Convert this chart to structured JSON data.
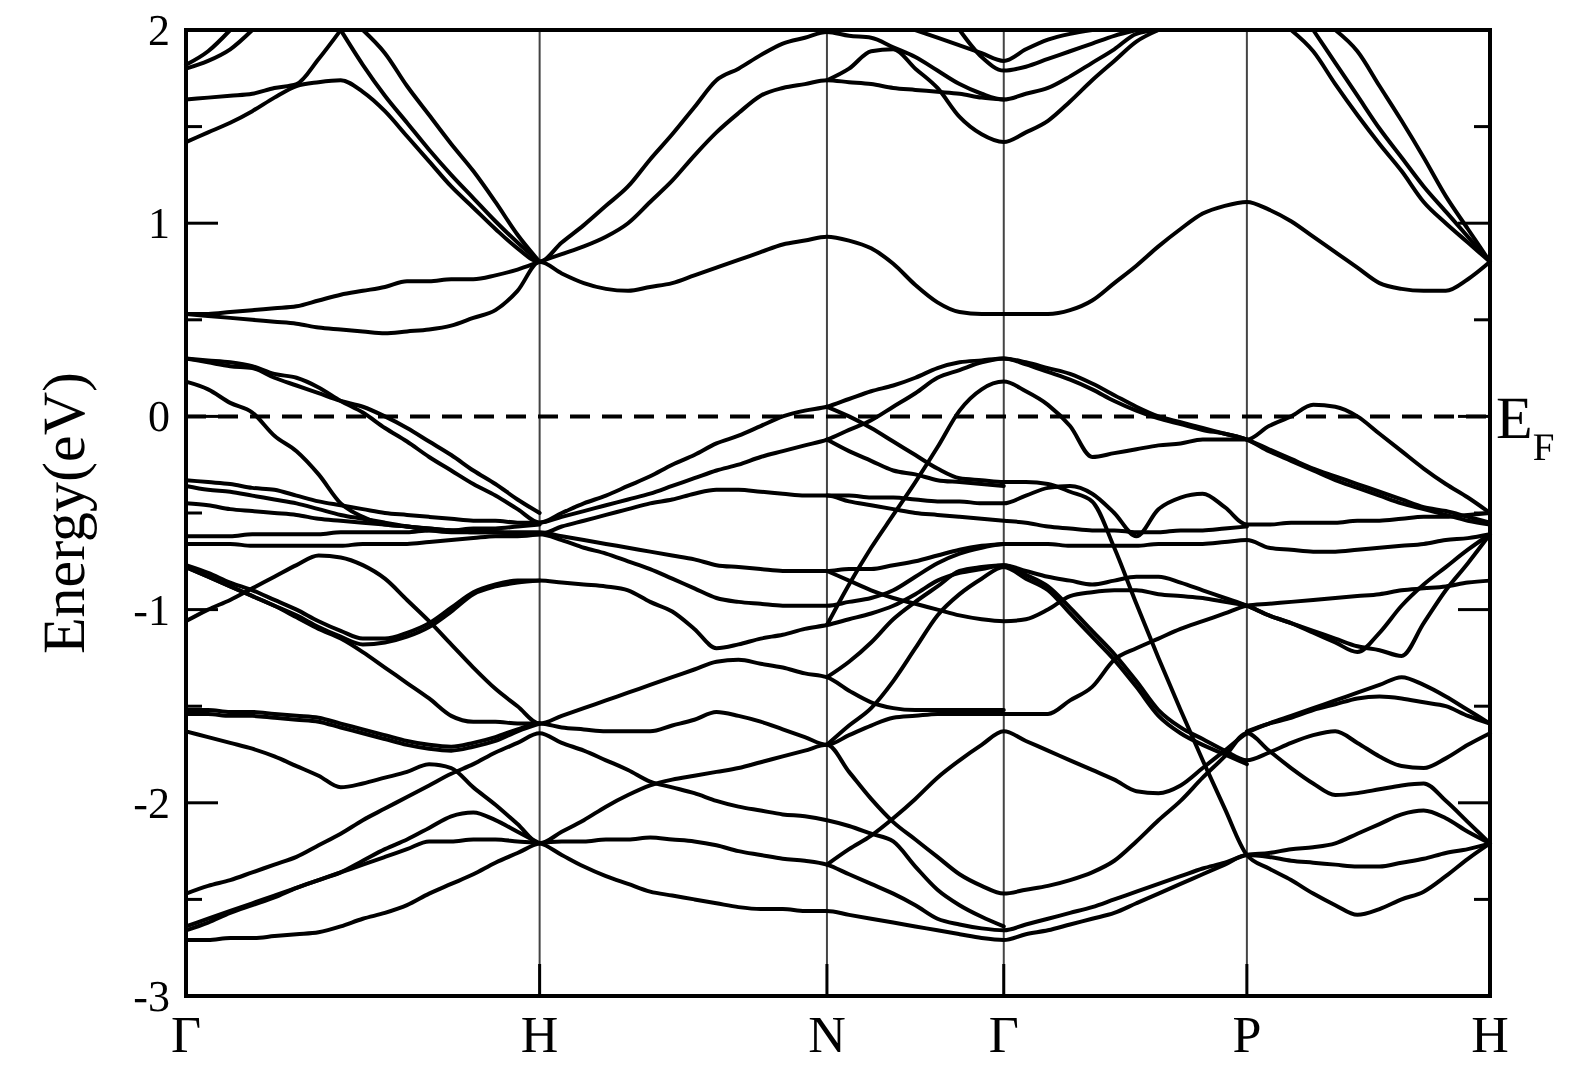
{
  "chart_data": {
    "type": "line",
    "ylabel": "Energy(eV)",
    "color": "#000000",
    "grid": "x",
    "categories": [
      "Γ",
      null,
      null,
      null,
      null,
      null,
      null,
      null,
      null,
      null,
      null,
      null,
      null,
      null,
      null,
      null,
      "H",
      null,
      null,
      null,
      null,
      null,
      null,
      null,
      null,
      null,
      null,
      null,
      null,
      "N",
      null,
      null,
      null,
      null,
      null,
      null,
      null,
      "Γ",
      null,
      null,
      null,
      null,
      null,
      null,
      null,
      null,
      null,
      null,
      "P",
      null,
      null,
      null,
      null,
      null,
      null,
      null,
      null,
      null,
      null,
      "H"
    ],
    "ylim": [
      -3,
      2
    ],
    "yticks": [
      -3,
      {
        "value": -2.5,
        "label": null
      },
      -2,
      {
        "value": -1.5,
        "label": null
      },
      -1,
      {
        "value": -0.5,
        "label": null
      },
      0,
      {
        "value": 0.5,
        "label": null
      },
      1,
      {
        "value": 1.5,
        "label": null
      },
      2
    ],
    "ref_lines": [
      {
        "axis": "y",
        "value": 0,
        "label": "E$_{F}$",
        "line_style": "dashed"
      }
    ],
    "series": [
      {
        "values": [
          1.82,
          1.89,
          2.0,
          null,
          null,
          null,
          null,
          null,
          null,
          null,
          null,
          null,
          null,
          null,
          null,
          null,
          null,
          null,
          null,
          null,
          null,
          null,
          null,
          null,
          null,
          null,
          null,
          null,
          null,
          null,
          null,
          null,
          null,
          2.0,
          1.96,
          1.92,
          1.88,
          1.84,
          1.9,
          1.95,
          1.98,
          2.0,
          null,
          null,
          null,
          null,
          null,
          null,
          null,
          null,
          null,
          null,
          null,
          null,
          null,
          null,
          null,
          null,
          null,
          null
        ]
      },
      {
        "values": [
          1.8,
          1.84,
          1.9,
          2.0,
          null,
          null,
          null,
          null,
          null,
          null,
          null,
          null,
          null,
          null,
          null,
          null,
          null,
          null,
          null,
          null,
          null,
          null,
          null,
          null,
          null,
          null,
          null,
          null,
          null,
          null,
          null,
          null,
          null,
          null,
          null,
          2.0,
          1.86,
          1.79,
          1.81,
          1.85,
          1.89,
          1.93,
          1.97,
          2.0,
          null,
          null,
          null,
          null,
          null,
          null,
          null,
          null,
          null,
          null,
          null,
          null,
          null,
          null,
          null,
          null
        ]
      },
      {
        "values": [
          1.64,
          1.65,
          1.66,
          1.67,
          1.7,
          1.72,
          1.85,
          2.0,
          null,
          null,
          null,
          null,
          null,
          null,
          null,
          null,
          null,
          null,
          null,
          null,
          null,
          null,
          null,
          null,
          null,
          null,
          null,
          null,
          null,
          1.74,
          1.8,
          1.89,
          1.9,
          1.8,
          1.7,
          1.55,
          1.46,
          1.42,
          1.47,
          1.53,
          1.63,
          1.74,
          1.84,
          1.94,
          2.0,
          null,
          null,
          null,
          null,
          null,
          null,
          null,
          null,
          null,
          null,
          null,
          null,
          null,
          null,
          null
        ]
      },
      {
        "values": [
          null,
          null,
          null,
          null,
          null,
          null,
          null,
          2.0,
          1.82,
          1.66,
          1.52,
          1.38,
          1.25,
          1.13,
          1.01,
          0.9,
          0.8,
          null,
          null,
          null,
          null,
          null,
          null,
          null,
          null,
          null,
          null,
          null,
          null,
          0.05,
          0,
          -0.06,
          -0.13,
          -0.2,
          -0.27,
          -0.32,
          -0.33,
          -0.34,
          -0.34,
          -0.35,
          -0.39,
          -0.44,
          -0.68,
          -0.97,
          -1.25,
          -1.52,
          -1.78,
          -2.03,
          -2.27,
          -2.34,
          -2.4,
          -2.47,
          -2.53,
          -2.58,
          -2.55,
          -2.5,
          -2.46,
          -2.38,
          -2.29,
          -2.21
        ]
      },
      {
        "values": [
          null,
          null,
          null,
          null,
          null,
          null,
          null,
          null,
          2.0,
          1.88,
          1.71,
          1.56,
          1.41,
          1.27,
          1.11,
          0.94,
          0.8,
          null,
          null,
          null,
          null,
          null,
          null,
          null,
          null,
          null,
          null,
          null,
          null,
          -1.08,
          -0.87,
          -0.68,
          -0.51,
          -0.34,
          -0.16,
          0.03,
          0.14,
          0.18,
          0.13,
          0.06,
          -0.05,
          -0.21,
          -0.19,
          -0.17,
          -0.15,
          -0.14,
          -0.12,
          -0.12,
          -0.12,
          -0.05,
          0,
          0.06,
          0.05,
          0,
          -0.09,
          -0.18,
          -0.27,
          -0.35,
          -0.42,
          -0.5
        ]
      },
      {
        "values": [
          1.42,
          1.47,
          1.52,
          1.58,
          1.65,
          1.71,
          1.73,
          1.74,
          1.68,
          1.58,
          1.45,
          1.32,
          1.19,
          1.08,
          0.97,
          0.87,
          0.8,
          0.9,
          0.99,
          1.09,
          1.19,
          1.33,
          1.46,
          1.6,
          1.74,
          1.8,
          1.87,
          1.93,
          1.96,
          1.99,
          1.97,
          1.96,
          1.91,
          1.86,
          1.79,
          1.72,
          1.67,
          1.64,
          1.67,
          1.7,
          1.76,
          1.83,
          1.9,
          1.98,
          2.0,
          null,
          null,
          null,
          null,
          null,
          null,
          null,
          null,
          null,
          null,
          null,
          null,
          null,
          null,
          null
        ]
      },
      {
        "values": [
          0.53,
          0.53,
          0.54,
          0.55,
          0.56,
          0.57,
          0.6,
          0.63,
          0.65,
          0.67,
          0.7,
          0.7,
          0.71,
          0.71,
          0.73,
          0.76,
          0.8,
          0.84,
          0.88,
          0.93,
          1.0,
          1.11,
          1.22,
          1.35,
          1.47,
          1.57,
          1.66,
          1.7,
          1.72,
          1.74,
          1.73,
          1.72,
          1.7,
          1.69,
          1.68,
          1.67,
          1.65,
          1.64,
          null,
          null,
          null,
          null,
          null,
          null,
          null,
          null,
          null,
          null,
          null,
          null,
          null,
          null,
          null,
          null,
          null,
          null,
          null,
          null,
          null,
          null
        ]
      },
      {
        "values": [
          0.53,
          0.52,
          0.51,
          0.5,
          0.49,
          0.48,
          0.46,
          0.45,
          0.44,
          0.43,
          0.44,
          0.45,
          0.47,
          0.51,
          0.55,
          0.65,
          0.8,
          0.74,
          0.69,
          0.66,
          0.65,
          0.67,
          0.69,
          0.73,
          0.77,
          0.81,
          0.85,
          0.89,
          0.91,
          0.93,
          0.91,
          0.87,
          0.79,
          0.68,
          0.59,
          0.54,
          0.53,
          0.53,
          0.53,
          0.53,
          0.55,
          0.6,
          0.69,
          0.78,
          0.88,
          0.97,
          1.05,
          1.09,
          1.11,
          1.07,
          1.01,
          0.93,
          0.85,
          0.77,
          0.69,
          0.66,
          0.65,
          0.65,
          0.71,
          0.8
        ]
      },
      {
        "values": [
          0.3,
          0.29,
          0.28,
          0.26,
          0.22,
          0.2,
          0.15,
          0.08,
          0.02,
          -0.06,
          -0.13,
          -0.21,
          -0.28,
          -0.35,
          -0.41,
          -0.48,
          -0.55,
          -0.5,
          -0.45,
          -0.41,
          -0.36,
          -0.31,
          -0.25,
          -0.2,
          -0.14,
          -0.1,
          -0.05,
          0,
          0.03,
          0.05,
          0.09,
          0.13,
          0.16,
          0.2,
          0.25,
          0.28,
          0.29,
          0.3,
          0.27,
          0.23,
          0.19,
          0.14,
          0.08,
          0.03,
          -0.01,
          -0.04,
          -0.07,
          -0.09,
          -0.12,
          -0.17,
          -0.22,
          -0.27,
          -0.31,
          -0.35,
          -0.39,
          -0.43,
          -0.47,
          -0.49,
          -0.52,
          -0.55
        ]
      },
      {
        "values": [
          0.3,
          0.28,
          0.26,
          0.25,
          0.2,
          0.16,
          0.12,
          0.08,
          0.05,
          0,
          -0.06,
          -0.13,
          -0.2,
          -0.28,
          -0.35,
          -0.43,
          -0.5,
          null,
          null,
          null,
          null,
          null,
          null,
          null,
          null,
          null,
          null,
          null,
          null,
          -0.12,
          -0.18,
          -0.23,
          -0.28,
          -0.3,
          -0.33,
          -0.34,
          -0.35,
          -0.36,
          null,
          null,
          null,
          null,
          null,
          null,
          null,
          null,
          null,
          null,
          null,
          null,
          2.0,
          1.89,
          1.72,
          1.56,
          1.41,
          1.27,
          1.11,
          1.0,
          0.9,
          0.8
        ]
      },
      {
        "values": [
          0.18,
          0.14,
          0.07,
          0.02,
          -0.1,
          -0.18,
          -0.3,
          -0.45,
          -0.52,
          -0.56,
          -0.57,
          -0.59,
          -0.6,
          -0.6,
          -0.6,
          -0.61,
          -0.61,
          -0.57,
          -0.54,
          -0.51,
          -0.48,
          -0.45,
          -0.43,
          -0.4,
          -0.38,
          -0.38,
          -0.39,
          -0.4,
          -0.41,
          -0.41,
          -0.44,
          -0.46,
          -0.48,
          -0.5,
          -0.51,
          -0.52,
          -0.53,
          -0.54,
          -0.55,
          -0.57,
          -0.58,
          -0.59,
          -0.59,
          -0.6,
          -0.6,
          -0.59,
          -0.59,
          -0.58,
          -0.57,
          null,
          null,
          null,
          null,
          null,
          null,
          null,
          null,
          null,
          null,
          null
        ]
      },
      {
        "values": [
          -0.33,
          -0.34,
          -0.35,
          -0.37,
          -0.38,
          -0.41,
          -0.44,
          -0.46,
          -0.48,
          -0.5,
          -0.51,
          -0.52,
          -0.53,
          -0.54,
          -0.54,
          -0.55,
          -0.55,
          -0.52,
          -0.49,
          -0.46,
          -0.43,
          -0.4,
          -0.36,
          -0.32,
          -0.28,
          -0.25,
          -0.21,
          -0.18,
          -0.15,
          -0.12,
          -0.07,
          -0.02,
          0.05,
          0.12,
          0.2,
          0.24,
          0.28,
          0.3,
          0.28,
          0.25,
          0.22,
          0.17,
          0.11,
          0.05,
          0,
          -0.03,
          -0.06,
          -0.09,
          -0.12,
          -0.18,
          -0.23,
          -0.28,
          -0.33,
          -0.37,
          -0.41,
          -0.45,
          -0.48,
          -0.51,
          -0.54,
          -0.56
        ]
      },
      {
        "values": [
          -0.36,
          -0.38,
          -0.39,
          -0.41,
          -0.43,
          -0.45,
          -0.48,
          -0.51,
          -0.53,
          -0.55,
          -0.57,
          -0.58,
          -0.59,
          -0.59,
          -0.6,
          -0.6,
          -0.6,
          -0.62,
          -0.64,
          -0.66,
          -0.68,
          -0.7,
          -0.72,
          -0.74,
          -0.77,
          -0.78,
          -0.79,
          -0.8,
          -0.8,
          -0.8,
          -0.79,
          -0.79,
          -0.77,
          -0.75,
          -0.72,
          -0.69,
          -0.67,
          -0.66,
          null,
          null,
          null,
          null,
          null,
          null,
          null,
          null,
          null,
          null,
          -1.63,
          -1.59,
          -1.56,
          -1.52,
          -1.49,
          -1.46,
          -1.45,
          -1.46,
          -1.48,
          -1.5,
          -1.55,
          -1.59
        ]
      },
      {
        "values": [
          -0.45,
          -0.46,
          -0.48,
          -0.49,
          -0.5,
          -0.51,
          -0.53,
          -0.54,
          -0.55,
          -0.56,
          -0.57,
          -0.58,
          -0.59,
          -0.6,
          -0.6,
          -0.61,
          -0.61,
          -0.64,
          -0.68,
          -0.71,
          -0.75,
          -0.79,
          -0.84,
          -0.89,
          -0.94,
          -0.96,
          -0.97,
          -0.98,
          -0.98,
          -0.98,
          -0.96,
          -0.94,
          -0.9,
          -0.83,
          -0.76,
          -0.71,
          -0.68,
          -0.66,
          -0.66,
          -0.66,
          -0.67,
          -0.67,
          -0.67,
          -0.67,
          -0.66,
          -0.66,
          -0.66,
          -0.65,
          -0.64,
          -0.68,
          -0.69,
          -0.7,
          -0.7,
          -0.69,
          -0.68,
          -0.67,
          -0.66,
          -0.64,
          -0.63,
          -0.61
        ]
      },
      {
        "values": [
          -0.62,
          -0.62,
          -0.62,
          -0.61,
          -0.61,
          -0.61,
          -0.61,
          -0.6,
          -0.6,
          -0.6,
          -0.6,
          -0.59,
          -0.59,
          -0.58,
          -0.58,
          -0.57,
          -0.56,
          null,
          null,
          null,
          null,
          null,
          null,
          null,
          null,
          null,
          null,
          null,
          null,
          -0.41,
          -0.41,
          -0.42,
          -0.42,
          -0.43,
          -0.44,
          -0.44,
          -0.45,
          -0.45,
          -0.41,
          -0.37,
          -0.36,
          -0.4,
          -0.5,
          -0.62,
          -0.48,
          -0.42,
          -0.4,
          -0.47,
          -0.56,
          -0.56,
          -0.55,
          -0.55,
          -0.55,
          -0.54,
          -0.54,
          -0.53,
          -0.52,
          -0.52,
          -0.51,
          -0.5
        ]
      },
      {
        "values": [
          -0.66,
          -0.66,
          -0.66,
          -0.67,
          -0.67,
          -0.67,
          -0.67,
          -0.67,
          -0.66,
          -0.66,
          -0.66,
          -0.65,
          -0.64,
          -0.63,
          -0.62,
          -0.62,
          -0.61,
          null,
          null,
          null,
          null,
          null,
          null,
          null,
          null,
          null,
          null,
          null,
          null,
          -1.35,
          -1.27,
          -1.17,
          -1.05,
          -0.96,
          -0.88,
          -0.8,
          -0.78,
          -0.77,
          -0.8,
          -0.83,
          -0.85,
          -0.87,
          -0.85,
          -0.83,
          -0.83,
          -0.86,
          -0.9,
          -0.94,
          -0.98,
          -1.03,
          -1.07,
          -1.12,
          -1.17,
          -1.22,
          -1.12,
          -0.98,
          -0.87,
          -0.78,
          -0.69,
          -0.61
        ]
      },
      {
        "values": [
          -1.06,
          -1.0,
          -0.95,
          -0.89,
          -0.83,
          -0.77,
          -0.72,
          -0.73,
          -0.77,
          -0.84,
          -0.95,
          -1.06,
          -1.18,
          -1.3,
          -1.41,
          -1.5,
          -1.59,
          -1.55,
          -1.51,
          -1.47,
          -1.43,
          -1.39,
          -1.35,
          -1.31,
          -1.27,
          -1.26,
          -1.28,
          -1.3,
          -1.33,
          -1.35,
          -1.42,
          -1.48,
          -1.51,
          -1.52,
          -1.52,
          -1.52,
          -1.52,
          -1.52,
          null,
          null,
          null,
          null,
          null,
          null,
          null,
          null,
          null,
          null,
          null,
          null,
          null,
          null,
          null,
          null,
          null,
          null,
          null,
          null,
          null,
          null
        ]
      },
      {
        "values": [
          -0.77,
          -0.81,
          -0.86,
          -0.9,
          -0.95,
          -1.0,
          -1.06,
          -1.11,
          -1.15,
          -1.15,
          -1.12,
          -1.07,
          -0.99,
          -0.91,
          -0.87,
          -0.85,
          -0.85,
          -0.86,
          -0.87,
          -0.88,
          -0.9,
          -0.96,
          -1.01,
          -1.1,
          -1.2,
          -1.18,
          -1.15,
          -1.13,
          -1.1,
          -1.08,
          -1.05,
          -1.02,
          -0.98,
          -0.92,
          -0.85,
          -0.81,
          -0.79,
          -0.77,
          -0.82,
          -0.88,
          -0.99,
          -1.11,
          -1.23,
          -1.37,
          -1.52,
          -1.61,
          -1.67,
          -1.73,
          -1.78,
          -1.74,
          -1.69,
          -1.65,
          -1.63,
          -1.69,
          -1.76,
          -1.81,
          -1.82,
          -1.77,
          -1.7,
          -1.64
        ]
      },
      {
        "values": [
          -0.78,
          -0.83,
          -0.88,
          -0.93,
          -0.98,
          -1.03,
          -1.09,
          -1.14,
          -1.18,
          -1.17,
          -1.14,
          -1.09,
          -1.01,
          -0.92,
          -0.88,
          -0.86,
          -0.85,
          null,
          null,
          null,
          null,
          null,
          null,
          null,
          null,
          null,
          null,
          null,
          null,
          -0.8,
          -0.85,
          -0.9,
          -0.94,
          -0.97,
          -1.0,
          -1.03,
          -1.05,
          -1.06,
          -1.05,
          -1.0,
          -0.93,
          -0.91,
          -0.9,
          -0.9,
          -0.92,
          -0.93,
          -0.94,
          -0.96,
          -0.98,
          -1.03,
          -1.07,
          -1.11,
          -1.15,
          -1.19,
          -1.21,
          -1.24,
          -1.07,
          -0.9,
          -0.76,
          -0.61
        ]
      },
      {
        "values": [
          -0.78,
          -0.83,
          -0.88,
          -0.93,
          -0.98,
          -1.04,
          -1.1,
          -1.15,
          -1.22,
          -1.3,
          -1.38,
          -1.46,
          -1.55,
          -1.58,
          -1.58,
          -1.59,
          -1.59,
          null,
          null,
          null,
          null,
          null,
          null,
          null,
          null,
          null,
          null,
          null,
          null,
          -1.7,
          -1.6,
          -1.51,
          -1.37,
          -1.2,
          -1.03,
          -0.92,
          -0.84,
          -0.78,
          -0.84,
          -0.9,
          -1.02,
          -1.14,
          -1.26,
          -1.4,
          -1.55,
          -1.64,
          -1.7,
          -1.75,
          -1.8,
          null,
          null,
          2.0,
          1.83,
          1.66,
          1.49,
          1.34,
          1.19,
          1.06,
          0.93,
          0.8
        ]
      },
      {
        "values": [
          -1.52,
          -1.52,
          -1.53,
          -1.53,
          -1.54,
          -1.55,
          -1.56,
          -1.59,
          -1.62,
          -1.65,
          -1.68,
          -1.7,
          -1.71,
          -1.69,
          -1.66,
          -1.62,
          -1.59,
          -1.61,
          -1.62,
          -1.63,
          -1.63,
          -1.63,
          -1.6,
          -1.57,
          -1.53,
          -1.55,
          -1.58,
          -1.62,
          -1.66,
          -1.7,
          -1.65,
          -1.6,
          -1.56,
          -1.55,
          -1.54,
          -1.54,
          -1.54,
          -1.54,
          -1.54,
          -1.54,
          -1.47,
          -1.4,
          -1.26,
          -1.2,
          -1.15,
          -1.1,
          -1.06,
          -1.02,
          -0.98,
          -0.97,
          -0.96,
          -0.95,
          -0.94,
          -0.93,
          -0.92,
          -0.9,
          -0.89,
          -0.88,
          -0.86,
          -0.85
        ]
      },
      {
        "values": [
          -1.54,
          -1.54,
          -1.55,
          -1.55,
          -1.56,
          -1.57,
          -1.58,
          -1.61,
          -1.64,
          -1.67,
          -1.7,
          -1.72,
          -1.73,
          -1.71,
          -1.68,
          -1.63,
          -1.59,
          null,
          null,
          null,
          null,
          null,
          null,
          null,
          null,
          null,
          null,
          null,
          null,
          -2.32,
          -2.24,
          -2.17,
          -2.08,
          -1.98,
          -1.87,
          -1.78,
          -1.7,
          -1.63,
          -1.68,
          -1.73,
          -1.78,
          -1.83,
          -1.88,
          -1.94,
          -1.95,
          -1.91,
          -1.82,
          -1.73,
          -1.64,
          -1.59,
          -1.55,
          -1.51,
          -1.47,
          -1.43,
          -1.39,
          -1.35,
          -1.39,
          -1.45,
          -1.52,
          -1.59
        ]
      },
      {
        "values": [
          -1.63,
          -1.66,
          -1.69,
          -1.72,
          -1.76,
          -1.81,
          -1.86,
          -1.92,
          -1.9,
          -1.87,
          -1.84,
          -1.8,
          -1.82,
          -1.92,
          -2.01,
          -2.11,
          -2.21,
          -2.15,
          -2.09,
          -2.02,
          -1.96,
          -1.91,
          -1.88,
          -1.86,
          -1.84,
          -1.82,
          -1.79,
          -1.76,
          -1.73,
          -1.7,
          -1.84,
          -1.98,
          -2.1,
          -2.19,
          -2.28,
          -2.37,
          -2.43,
          -2.47,
          -2.45,
          -2.43,
          -2.4,
          -2.36,
          -2.3,
          -2.2,
          -2.09,
          -1.99,
          -1.87,
          -1.76,
          -1.64,
          -1.73,
          -1.82,
          -1.9,
          -1.96,
          -1.95,
          -1.93,
          -1.91,
          -1.9,
          -1.99,
          -2.1,
          -2.21
        ]
      },
      {
        "values": [
          -2.47,
          -2.43,
          -2.4,
          -2.36,
          -2.32,
          -2.28,
          -2.22,
          -2.16,
          -2.09,
          -2.03,
          -1.97,
          -1.91,
          -1.85,
          -1.8,
          -1.74,
          -1.69,
          -1.64,
          -1.69,
          -1.73,
          -1.78,
          -1.83,
          -1.89,
          -1.92,
          -1.95,
          -1.99,
          -2.02,
          -2.04,
          -2.06,
          -2.07,
          -2.09,
          -2.12,
          -2.16,
          -2.2,
          -2.33,
          -2.45,
          -2.53,
          -2.59,
          -2.64,
          null,
          null,
          null,
          null,
          null,
          null,
          null,
          null,
          null,
          null,
          null,
          null,
          null,
          null,
          null,
          null,
          null,
          null,
          null,
          null,
          null,
          null
        ]
      },
      {
        "values": [
          -2.66,
          -2.62,
          -2.57,
          -2.53,
          -2.49,
          -2.44,
          -2.4,
          -2.36,
          -2.3,
          -2.24,
          -2.19,
          -2.13,
          -2.07,
          -2.05,
          -2.09,
          -2.15,
          -2.21,
          null,
          null,
          null,
          null,
          null,
          null,
          null,
          null,
          null,
          null,
          null,
          null,
          null,
          null,
          null,
          null,
          null,
          null,
          null,
          null,
          null,
          null,
          null,
          null,
          null,
          null,
          null,
          null,
          null,
          null,
          null,
          null,
          null,
          null,
          null,
          2.0,
          1.89,
          1.71,
          1.53,
          1.34,
          1.14,
          0.97,
          0.8
        ]
      },
      {
        "values": [
          -2.64,
          -2.6,
          -2.56,
          -2.52,
          -2.48,
          -2.44,
          -2.4,
          -2.36,
          -2.32,
          -2.28,
          -2.24,
          -2.2,
          -2.2,
          -2.19,
          -2.19,
          -2.2,
          -2.21,
          -2.27,
          -2.33,
          -2.38,
          -2.42,
          -2.46,
          -2.48,
          -2.5,
          -2.52,
          -2.54,
          -2.55,
          -2.55,
          -2.56,
          -2.56,
          -2.58,
          -2.6,
          -2.62,
          -2.64,
          -2.66,
          -2.68,
          -2.7,
          -2.71,
          -2.68,
          -2.66,
          -2.63,
          -2.6,
          -2.57,
          -2.52,
          -2.47,
          -2.42,
          -2.37,
          -2.32,
          -2.27,
          -2.28,
          -2.3,
          -2.31,
          -2.32,
          -2.33,
          -2.33,
          -2.31,
          -2.29,
          -2.26,
          -2.24,
          -2.21
        ]
      },
      {
        "values": [
          -2.71,
          -2.71,
          -2.7,
          -2.7,
          -2.69,
          -2.68,
          -2.67,
          -2.64,
          -2.6,
          -2.57,
          -2.53,
          -2.47,
          -2.42,
          -2.37,
          -2.31,
          -2.26,
          -2.21,
          -2.2,
          -2.2,
          -2.19,
          -2.19,
          -2.18,
          -2.19,
          -2.2,
          -2.22,
          -2.25,
          -2.27,
          -2.29,
          -2.3,
          -2.32,
          -2.37,
          -2.42,
          -2.47,
          -2.53,
          -2.6,
          -2.63,
          -2.65,
          -2.66,
          -2.63,
          -2.6,
          -2.57,
          -2.54,
          -2.5,
          -2.46,
          -2.42,
          -2.38,
          -2.34,
          -2.31,
          -2.27,
          -2.26,
          -2.24,
          -2.23,
          -2.21,
          -2.16,
          -2.11,
          -2.06,
          -2.04,
          -2.08,
          -2.15,
          -2.21
        ]
      }
    ]
  }
}
